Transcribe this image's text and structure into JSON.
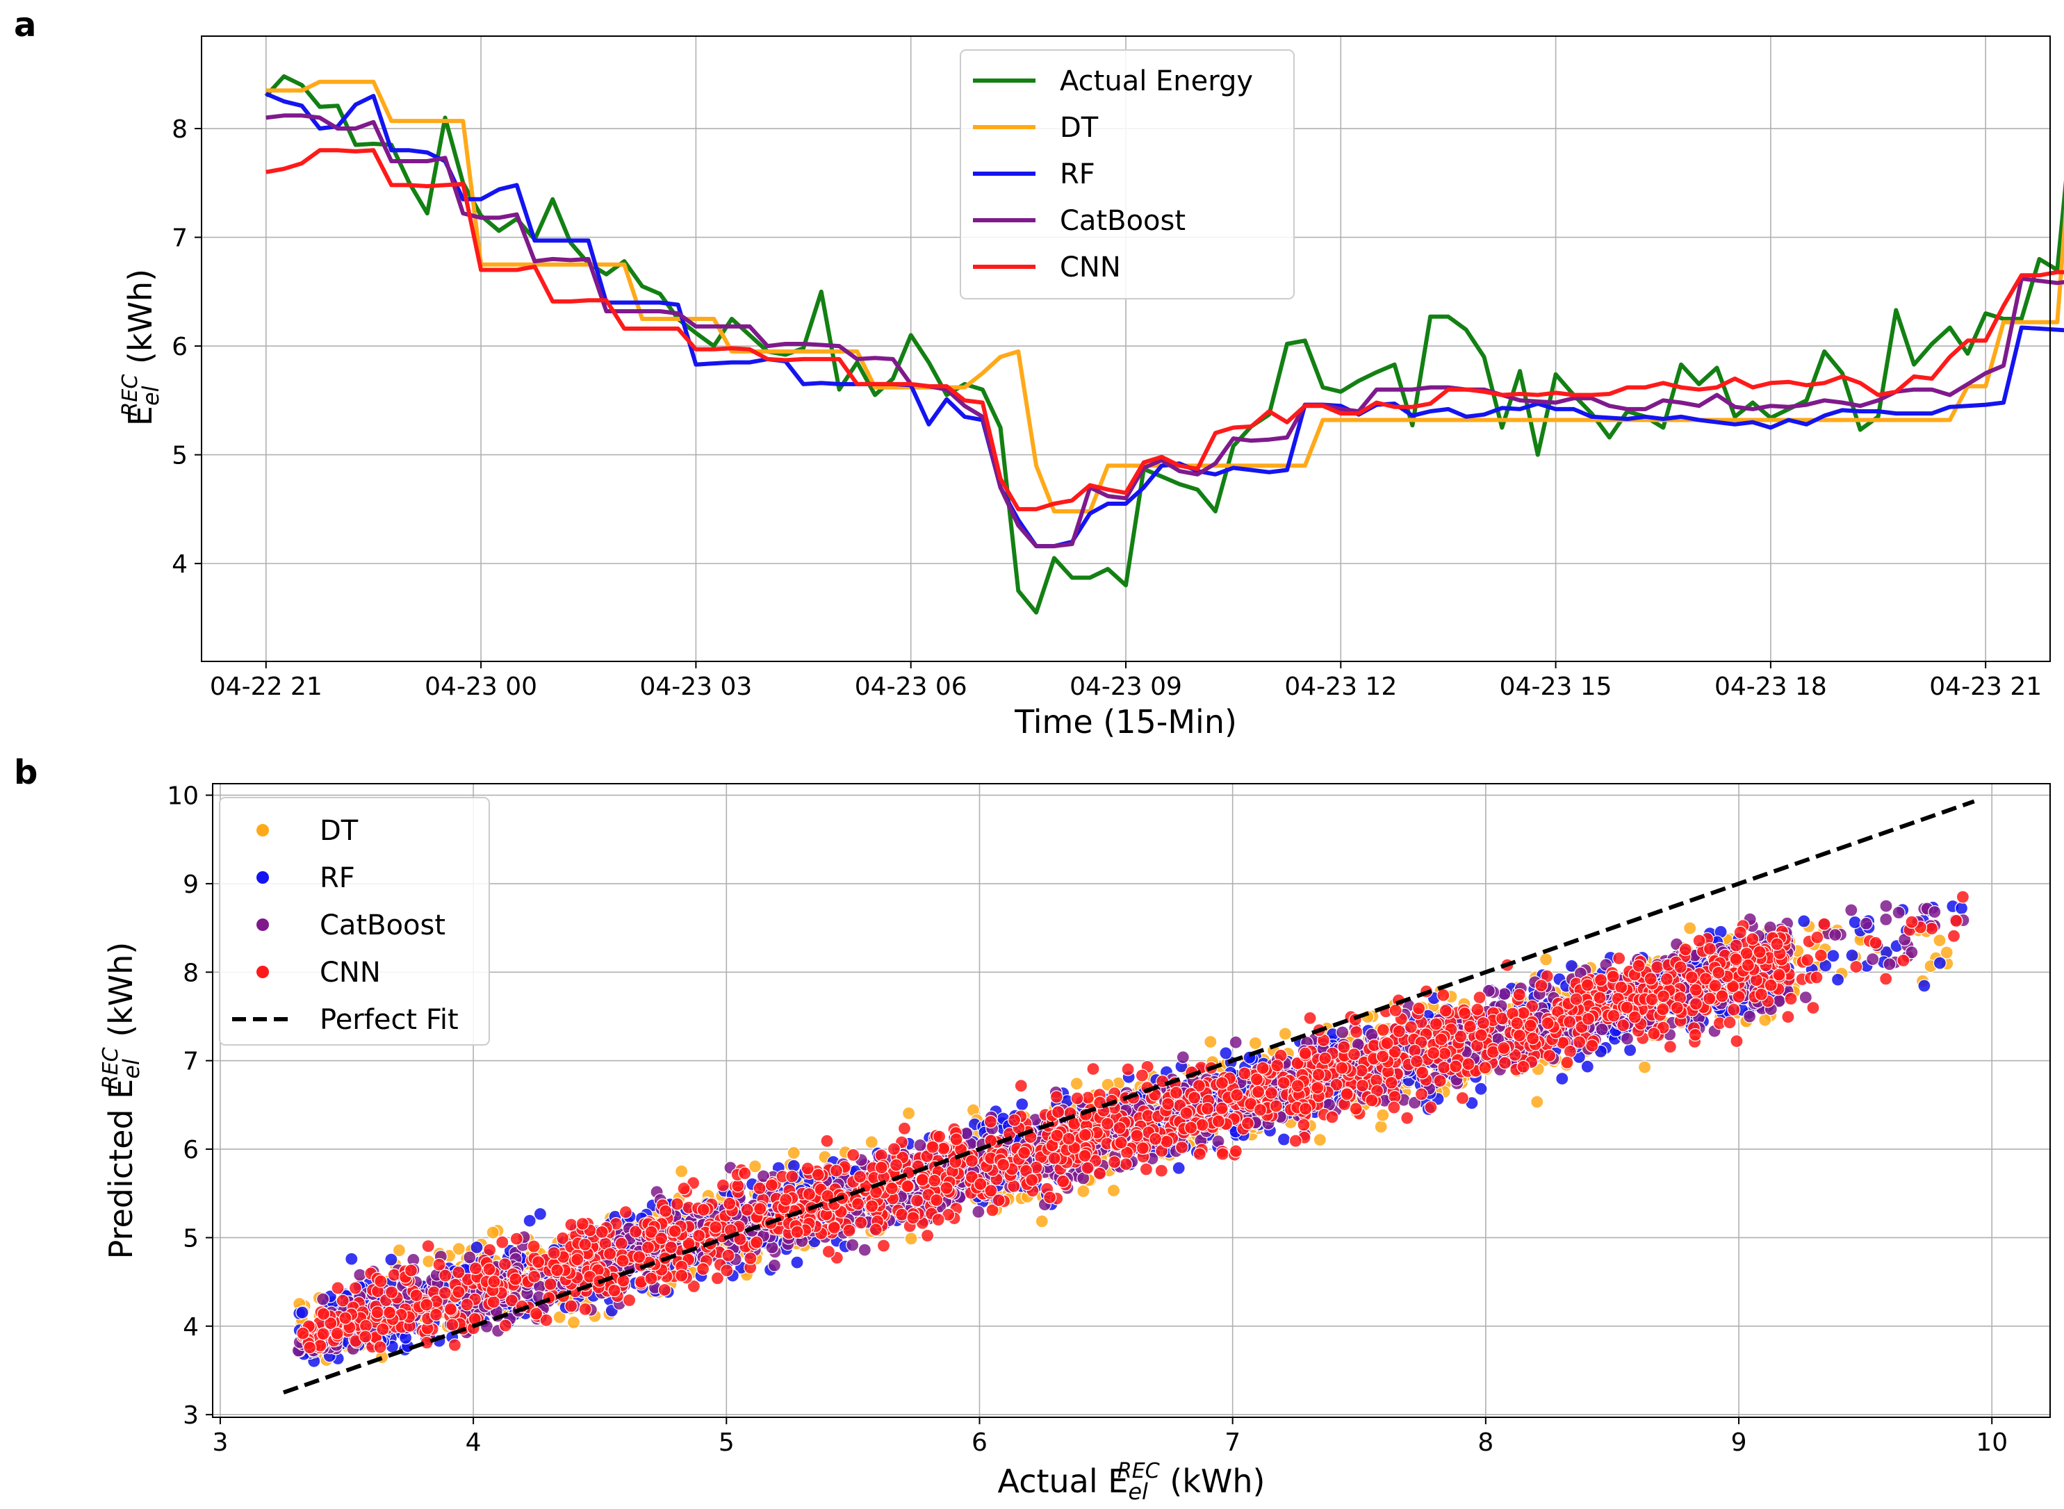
{
  "chart_data": [
    {
      "panel": "a",
      "type": "line",
      "xlabel": "Time (15-Min)",
      "ylabel": {
        "prefix": "E",
        "sub": "el",
        "sup": "REC",
        "suffix": " (kWh)"
      },
      "xticks": [
        "04-22 21",
        "04-23 00",
        "04-23 03",
        "04-23 06",
        "04-23 09",
        "04-23 12",
        "04-23 15",
        "04-23 18",
        "04-23 21"
      ],
      "yticks": [
        "4",
        "5",
        "6",
        "7",
        "8"
      ],
      "x_unit": "hours since 04-22 21:00 (15-min steps)",
      "xlim": [
        -0.9,
        24.9
      ],
      "ylim": [
        3.1,
        8.85
      ],
      "grid": true,
      "legend_position": "upper center",
      "series": [
        {
          "name": "Actual Energy",
          "color": "#138013",
          "values": [
            8.3,
            8.48,
            8.4,
            8.2,
            8.21,
            7.85,
            7.86,
            7.85,
            7.5,
            7.22,
            8.1,
            7.5,
            7.2,
            7.06,
            7.17,
            6.98,
            7.35,
            6.95,
            6.76,
            6.66,
            6.78,
            6.55,
            6.48,
            6.25,
            6.12,
            6.0,
            6.25,
            6.1,
            5.95,
            5.92,
            5.98,
            6.5,
            5.6,
            5.85,
            5.55,
            5.7,
            6.1,
            5.85,
            5.55,
            5.65,
            5.6,
            5.25,
            3.75,
            3.55,
            4.05,
            3.87,
            3.87,
            3.95,
            3.8,
            4.87,
            4.8,
            4.73,
            4.68,
            4.48,
            5.08,
            5.26,
            5.37,
            6.02,
            6.05,
            5.62,
            5.58,
            5.68,
            5.76,
            5.83,
            5.27,
            6.27,
            6.27,
            6.15,
            5.9,
            5.25,
            5.77,
            5.0,
            5.74,
            5.55,
            5.38,
            5.16,
            5.4,
            5.35,
            5.25,
            5.83,
            5.65,
            5.8,
            5.35,
            5.48,
            5.34,
            5.42,
            5.5,
            5.95,
            5.75,
            5.23,
            5.35,
            6.33,
            5.83,
            6.02,
            6.17,
            5.93,
            6.3,
            6.25,
            6.25,
            6.8,
            6.7,
            8.38
          ]
        },
        {
          "name": "DT",
          "color": "#ffa919",
          "values": [
            8.35,
            8.35,
            8.35,
            8.43,
            8.43,
            8.43,
            8.43,
            8.07,
            8.07,
            8.07,
            8.07,
            8.07,
            6.75,
            6.75,
            6.75,
            6.75,
            6.75,
            6.75,
            6.75,
            6.75,
            6.75,
            6.25,
            6.25,
            6.25,
            6.25,
            6.25,
            5.95,
            5.95,
            5.95,
            5.95,
            5.95,
            5.95,
            5.95,
            5.95,
            5.62,
            5.62,
            5.62,
            5.62,
            5.62,
            5.62,
            5.75,
            5.9,
            5.95,
            4.9,
            4.48,
            4.48,
            4.48,
            4.9,
            4.9,
            4.9,
            4.9,
            4.9,
            4.9,
            4.9,
            4.9,
            4.9,
            4.9,
            4.9,
            4.9,
            5.32,
            5.32,
            5.32,
            5.32,
            5.32,
            5.32,
            5.32,
            5.32,
            5.32,
            5.32,
            5.32,
            5.32,
            5.32,
            5.32,
            5.32,
            5.32,
            5.32,
            5.32,
            5.32,
            5.32,
            5.32,
            5.32,
            5.32,
            5.32,
            5.32,
            5.32,
            5.32,
            5.32,
            5.32,
            5.32,
            5.32,
            5.32,
            5.32,
            5.32,
            5.32,
            5.32,
            5.63,
            5.63,
            6.22,
            6.22,
            6.22,
            6.22,
            8.35
          ]
        },
        {
          "name": "RF",
          "color": "#1414f0",
          "values": [
            8.32,
            8.25,
            8.21,
            8.0,
            8.02,
            8.22,
            8.3,
            7.8,
            7.8,
            7.78,
            7.7,
            7.35,
            7.35,
            7.44,
            7.48,
            6.97,
            6.97,
            6.97,
            6.97,
            6.4,
            6.4,
            6.4,
            6.4,
            6.38,
            5.83,
            5.84,
            5.85,
            5.85,
            5.88,
            5.86,
            5.65,
            5.66,
            5.65,
            5.65,
            5.65,
            5.65,
            5.64,
            5.28,
            5.51,
            5.35,
            5.32,
            4.7,
            4.4,
            4.16,
            4.16,
            4.2,
            4.46,
            4.55,
            4.55,
            4.7,
            4.9,
            4.92,
            4.85,
            4.82,
            4.88,
            4.86,
            4.84,
            4.86,
            5.46,
            5.46,
            5.45,
            5.37,
            5.46,
            5.47,
            5.36,
            5.4,
            5.42,
            5.35,
            5.37,
            5.43,
            5.42,
            5.47,
            5.42,
            5.42,
            5.35,
            5.34,
            5.33,
            5.35,
            5.33,
            5.35,
            5.32,
            5.3,
            5.28,
            5.3,
            5.25,
            5.32,
            5.28,
            5.36,
            5.41,
            5.4,
            5.4,
            5.38,
            5.38,
            5.38,
            5.44,
            5.45,
            5.46,
            5.48,
            6.17,
            6.16,
            6.15,
            6.14,
            8.25
          ]
        },
        {
          "name": "CatBoost",
          "color": "#7f1a8c",
          "values": [
            8.1,
            8.12,
            8.12,
            8.1,
            8.0,
            8.0,
            8.06,
            7.7,
            7.7,
            7.7,
            7.73,
            7.22,
            7.18,
            7.18,
            7.21,
            6.78,
            6.8,
            6.79,
            6.8,
            6.32,
            6.32,
            6.32,
            6.32,
            6.3,
            6.18,
            6.18,
            6.18,
            6.18,
            6.0,
            6.02,
            6.02,
            6.01,
            6.0,
            5.88,
            5.89,
            5.88,
            5.65,
            5.63,
            5.6,
            5.45,
            5.35,
            4.7,
            4.35,
            4.16,
            4.16,
            4.18,
            4.7,
            4.62,
            4.6,
            4.88,
            4.95,
            4.85,
            4.82,
            4.92,
            5.15,
            5.13,
            5.14,
            5.16,
            5.46,
            5.46,
            5.42,
            5.4,
            5.6,
            5.6,
            5.6,
            5.62,
            5.62,
            5.6,
            5.6,
            5.55,
            5.5,
            5.49,
            5.48,
            5.52,
            5.52,
            5.45,
            5.42,
            5.42,
            5.5,
            5.48,
            5.45,
            5.55,
            5.44,
            5.42,
            5.45,
            5.44,
            5.46,
            5.5,
            5.48,
            5.45,
            5.5,
            5.58,
            5.6,
            5.6,
            5.55,
            5.65,
            5.75,
            5.82,
            6.62,
            6.6,
            6.58,
            6.6,
            8.0
          ]
        },
        {
          "name": "CNN",
          "color": "#ff1a1a",
          "values": [
            7.6,
            7.63,
            7.68,
            7.8,
            7.8,
            7.79,
            7.8,
            7.48,
            7.48,
            7.47,
            7.48,
            7.49,
            6.7,
            6.7,
            6.7,
            6.73,
            6.41,
            6.41,
            6.42,
            6.42,
            6.16,
            6.16,
            6.16,
            6.16,
            5.97,
            5.97,
            5.98,
            5.97,
            5.88,
            5.87,
            5.88,
            5.88,
            5.88,
            5.65,
            5.65,
            5.65,
            5.65,
            5.63,
            5.63,
            5.5,
            5.48,
            4.78,
            4.5,
            4.5,
            4.55,
            4.58,
            4.72,
            4.68,
            4.65,
            4.93,
            4.98,
            4.9,
            4.87,
            5.2,
            5.25,
            5.26,
            5.4,
            5.3,
            5.45,
            5.45,
            5.38,
            5.38,
            5.48,
            5.44,
            5.44,
            5.47,
            5.6,
            5.6,
            5.58,
            5.55,
            5.56,
            5.55,
            5.57,
            5.55,
            5.55,
            5.56,
            5.62,
            5.62,
            5.66,
            5.62,
            5.6,
            5.62,
            5.7,
            5.62,
            5.66,
            5.67,
            5.64,
            5.66,
            5.72,
            5.66,
            5.55,
            5.58,
            5.72,
            5.7,
            5.9,
            6.05,
            6.05,
            6.37,
            6.65,
            6.65,
            6.68,
            6.68,
            7.85
          ]
        }
      ]
    },
    {
      "panel": "b",
      "type": "scatter",
      "xlabel": {
        "prefix": "Actual E",
        "sub": "el",
        "sup": "REC",
        "suffix": " (kWh)"
      },
      "ylabel": {
        "prefix": "Predicted E",
        "sub": "el",
        "sup": "REC",
        "suffix": " (kWh)"
      },
      "xticks": [
        "3",
        "4",
        "5",
        "6",
        "7",
        "8",
        "9",
        "10"
      ],
      "yticks": [
        "3",
        "4",
        "5",
        "6",
        "7",
        "8",
        "9",
        "10"
      ],
      "xlim": [
        2.97,
        10.23
      ],
      "ylim": [
        2.97,
        10.13
      ],
      "grid": true,
      "legend_position": "upper left",
      "perfect_fit": {
        "name": "Perfect Fit",
        "color": "#000000",
        "from": [
          3.25,
          3.25
        ],
        "to": [
          9.93,
          9.93
        ]
      },
      "series": [
        {
          "name": "DT",
          "color": "#ffa919",
          "x_range": [
            3.25,
            9.93
          ],
          "slope": 0.72,
          "intercept": 1.5,
          "spread": 0.36,
          "max": 8.45
        },
        {
          "name": "RF",
          "color": "#1414f0",
          "x_range": [
            3.25,
            9.93
          ],
          "slope": 0.72,
          "intercept": 1.5,
          "spread": 0.33,
          "max": 8.7
        },
        {
          "name": "CatBoost",
          "color": "#7f1a8c",
          "x_range": [
            3.25,
            9.93
          ],
          "slope": 0.72,
          "intercept": 1.5,
          "spread": 0.33,
          "max": 8.7
        },
        {
          "name": "CNN",
          "color": "#ff1a1a",
          "x_range": [
            3.25,
            9.93
          ],
          "slope": 0.72,
          "intercept": 1.5,
          "spread": 0.35,
          "max": 8.85
        }
      ]
    }
  ],
  "panels": {
    "a": "a",
    "b": "b"
  }
}
